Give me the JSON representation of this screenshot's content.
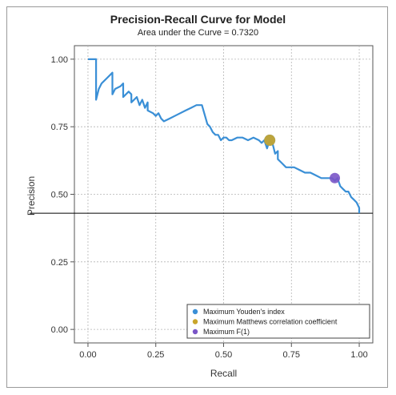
{
  "chart_data": {
    "type": "line",
    "title": "Precision-Recall Curve for Model",
    "subtitle": "Area under the Curve = 0.7320",
    "xlabel": "Recall",
    "ylabel": "Precision",
    "xlim": [
      -0.05,
      1.05
    ],
    "ylim": [
      -0.05,
      1.05
    ],
    "x_ticks": [
      0.0,
      0.25,
      0.5,
      0.75,
      1.0
    ],
    "x_tick_labels": [
      "0.00",
      "0.25",
      "0.50",
      "0.75",
      "1.00"
    ],
    "y_ticks": [
      0.0,
      0.25,
      0.5,
      0.75,
      1.0
    ],
    "y_tick_labels": [
      "0.00",
      "0.25",
      "0.50",
      "0.75",
      "1.00"
    ],
    "grid": true,
    "baseline_y": 0.43,
    "series": [
      {
        "color": "#3a8fd6",
        "x": [
          0.0,
          0.03,
          0.03,
          0.04,
          0.05,
          0.07,
          0.09,
          0.09,
          0.1,
          0.12,
          0.13,
          0.13,
          0.15,
          0.16,
          0.16,
          0.18,
          0.19,
          0.2,
          0.21,
          0.22,
          0.22,
          0.24,
          0.25,
          0.26,
          0.27,
          0.28,
          0.3,
          0.32,
          0.34,
          0.36,
          0.38,
          0.4,
          0.42,
          0.44,
          0.45,
          0.46,
          0.47,
          0.48,
          0.49,
          0.5,
          0.51,
          0.52,
          0.53,
          0.55,
          0.57,
          0.59,
          0.61,
          0.63,
          0.64,
          0.65,
          0.66,
          0.67,
          0.68,
          0.69,
          0.7,
          0.7,
          0.71,
          0.72,
          0.73,
          0.74,
          0.76,
          0.78,
          0.8,
          0.82,
          0.84,
          0.86,
          0.88,
          0.9,
          0.91,
          0.92,
          0.93,
          0.94,
          0.95,
          0.96,
          0.97,
          0.98,
          0.99,
          1.0,
          1.0
        ],
        "y": [
          1.0,
          1.0,
          0.85,
          0.89,
          0.91,
          0.93,
          0.95,
          0.87,
          0.89,
          0.9,
          0.91,
          0.86,
          0.88,
          0.87,
          0.84,
          0.86,
          0.83,
          0.85,
          0.82,
          0.84,
          0.81,
          0.8,
          0.79,
          0.8,
          0.78,
          0.77,
          0.78,
          0.79,
          0.8,
          0.81,
          0.82,
          0.83,
          0.83,
          0.76,
          0.75,
          0.73,
          0.72,
          0.72,
          0.7,
          0.71,
          0.71,
          0.7,
          0.7,
          0.71,
          0.71,
          0.7,
          0.71,
          0.7,
          0.69,
          0.7,
          0.67,
          0.7,
          0.69,
          0.65,
          0.66,
          0.63,
          0.62,
          0.61,
          0.6,
          0.6,
          0.6,
          0.59,
          0.58,
          0.58,
          0.57,
          0.56,
          0.56,
          0.56,
          0.55,
          0.56,
          0.53,
          0.52,
          0.51,
          0.51,
          0.49,
          0.48,
          0.47,
          0.45,
          0.43
        ]
      }
    ],
    "markers": [
      {
        "label": "Maximum Youden's index",
        "color": "#3a8fd6",
        "x": 0.67,
        "y": 0.7
      },
      {
        "label": "Maximum Matthews correlation coefficient",
        "color": "#c9a52b",
        "x": 0.67,
        "y": 0.7
      },
      {
        "label": "Maximum F(1)",
        "color": "#7a55c7",
        "x": 0.91,
        "y": 0.56
      }
    ],
    "legend_position": "bottom-right"
  }
}
